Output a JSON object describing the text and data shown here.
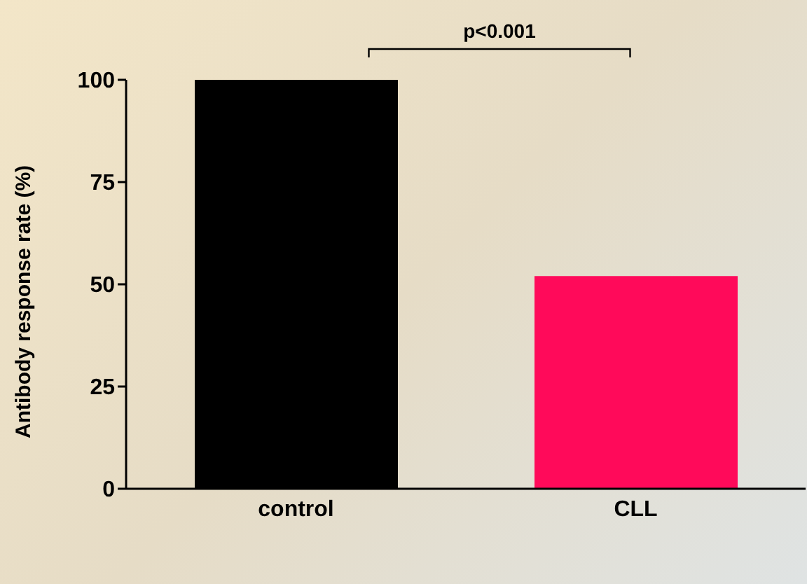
{
  "chart_data": {
    "type": "bar",
    "ylabel": "Antibody response rate (%)",
    "categories": [
      "control",
      "CLL"
    ],
    "values": [
      100,
      52
    ],
    "colors": [
      "#000000",
      "#ff0a5a"
    ],
    "ylim": [
      0,
      100
    ],
    "yticks": [
      0,
      25,
      50,
      75,
      100
    ],
    "annotations": [
      "p<0.001"
    ]
  }
}
